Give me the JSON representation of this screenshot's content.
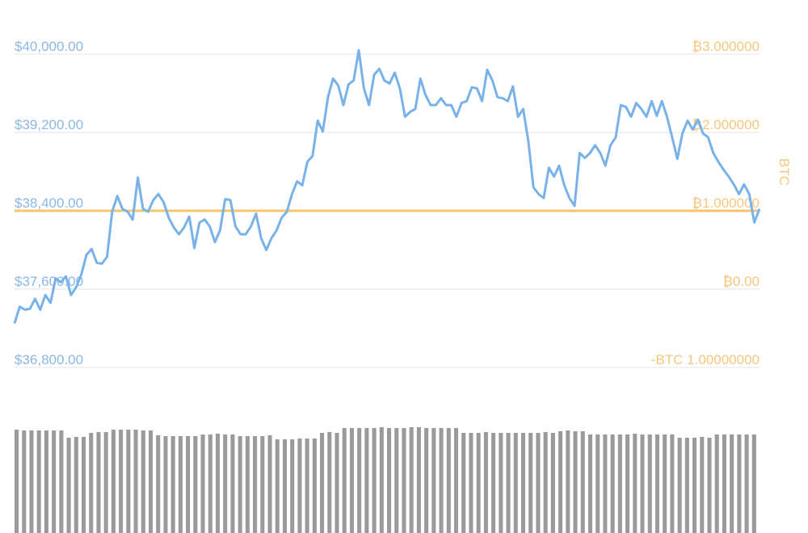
{
  "chart_data": {
    "type": "line",
    "y_axis_label": "BTC",
    "ylim": [
      36800,
      40000
    ],
    "yticks": [
      {
        "value": 36800,
        "label": "$36,800.00"
      },
      {
        "value": 37600,
        "label": "$37,600.00"
      },
      {
        "value": 38400,
        "label": "$38,400.00"
      },
      {
        "value": 39200,
        "label": "$39,200.00"
      },
      {
        "value": 40000,
        "label": "$40,000.00"
      }
    ],
    "y2lim": [
      -1,
      3
    ],
    "y2ticks": [
      {
        "value": -1,
        "label": "-BTC 1.00000000"
      },
      {
        "value": 0,
        "label": "₿0.00"
      },
      {
        "value": 1,
        "label": "₿1.000000"
      },
      {
        "value": 2,
        "label": "₿2.000000"
      },
      {
        "value": 3,
        "label": "₿3.000000"
      }
    ],
    "grid": true,
    "tick_color": "#8ab8e6",
    "tick2_color": "#f5c77e",
    "series": [
      {
        "color": "#f6c46e",
        "axis": "y2",
        "values": [
          1,
          1
        ]
      },
      {
        "color": "#78b2e8",
        "values": [
          37250,
          37420,
          37390,
          37400,
          37500,
          37390,
          37540,
          37460,
          37710,
          37670,
          37730,
          37540,
          37620,
          37750,
          37950,
          38010,
          37870,
          37860,
          37930,
          38390,
          38550,
          38420,
          38390,
          38310,
          38740,
          38420,
          38390,
          38510,
          38570,
          38490,
          38330,
          38230,
          38160,
          38230,
          38340,
          38020,
          38280,
          38310,
          38240,
          38080,
          38200,
          38520,
          38510,
          38240,
          38160,
          38160,
          38240,
          38370,
          38120,
          38000,
          38120,
          38200,
          38330,
          38390,
          38570,
          38700,
          38660,
          38900,
          38960,
          39320,
          39210,
          39560,
          39750,
          39680,
          39480,
          39690,
          39730,
          40040,
          39650,
          39480,
          39790,
          39850,
          39730,
          39700,
          39810,
          39650,
          39360,
          39410,
          39440,
          39750,
          39580,
          39480,
          39480,
          39550,
          39480,
          39480,
          39360,
          39500,
          39520,
          39660,
          39650,
          39520,
          39840,
          39730,
          39560,
          39550,
          39520,
          39670,
          39360,
          39440,
          39110,
          38640,
          38570,
          38530,
          38840,
          38750,
          38860,
          38660,
          38530,
          38450,
          38990,
          38940,
          38990,
          39070,
          38990,
          38860,
          39070,
          39150,
          39480,
          39460,
          39360,
          39500,
          39440,
          39360,
          39520,
          39370,
          39520,
          39360,
          39150,
          38930,
          39190,
          39320,
          39230,
          39330,
          39190,
          39150,
          38990,
          38900,
          38820,
          38750,
          38670,
          38570,
          38670,
          38570,
          38280,
          38420
        ]
      }
    ],
    "volume": {
      "color": "#9a9a9a",
      "ylim": [
        0,
        130
      ],
      "values": [
        128,
        127,
        127,
        127,
        127,
        127,
        127,
        118,
        119,
        119,
        124,
        125,
        125,
        128,
        128,
        128,
        128,
        127,
        127,
        121,
        120,
        120,
        120,
        120,
        120,
        122,
        122,
        123,
        122,
        122,
        120,
        120,
        120,
        120,
        121,
        116,
        116,
        116,
        117,
        117,
        117,
        124,
        125,
        124,
        130,
        130,
        130,
        130,
        130,
        131,
        130,
        130,
        130,
        131,
        131,
        130,
        130,
        130,
        130,
        130,
        124,
        124,
        124,
        125,
        124,
        124,
        124,
        124,
        124,
        124,
        124,
        125,
        124,
        126,
        127,
        126,
        126,
        122,
        122,
        122,
        122,
        122,
        122,
        123,
        122,
        122,
        122,
        122,
        122,
        118,
        118,
        118,
        119,
        118,
        122,
        122,
        122,
        122,
        122,
        122
      ]
    }
  }
}
